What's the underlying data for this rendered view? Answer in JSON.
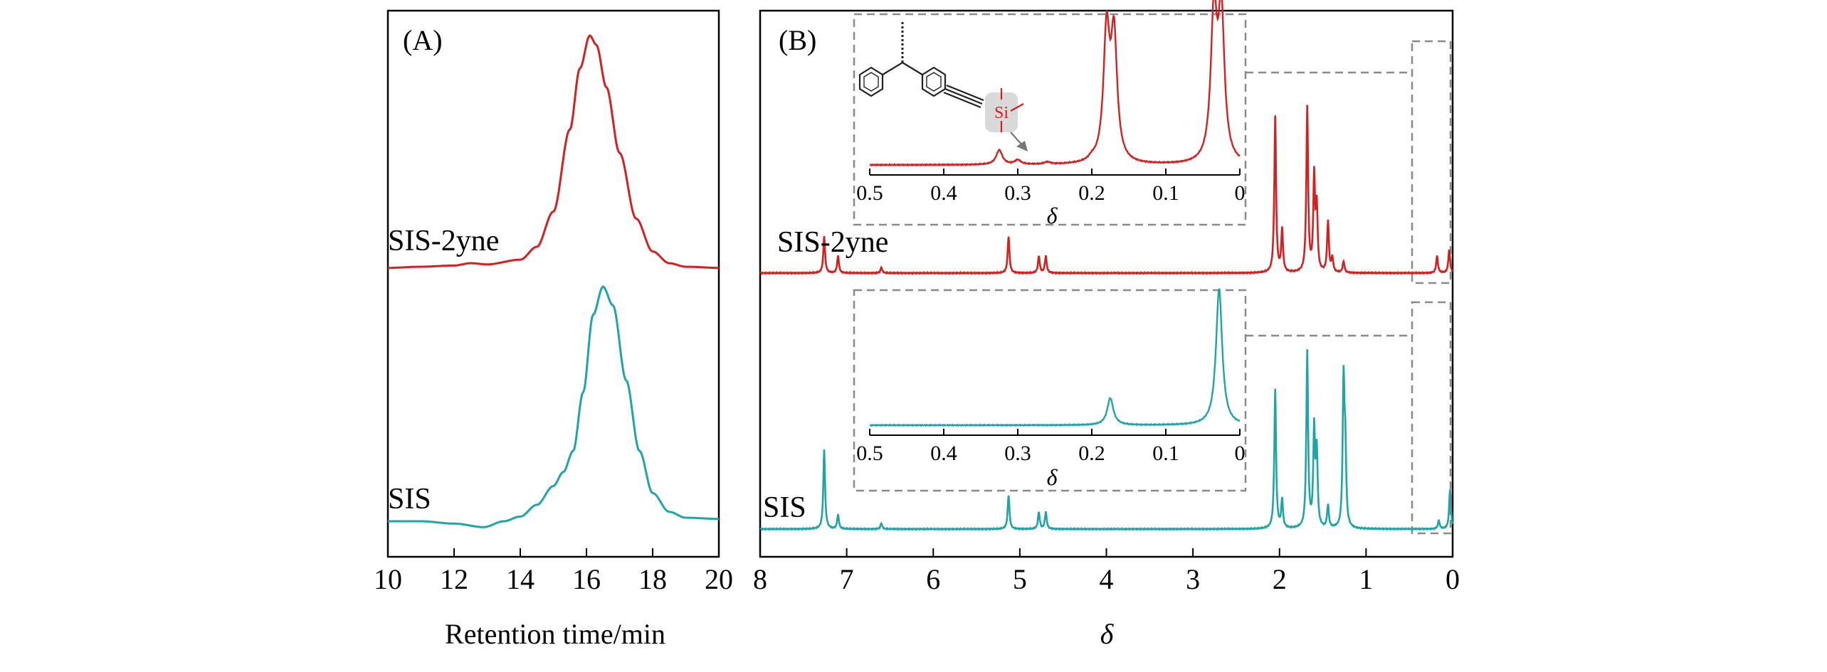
{
  "colors": {
    "sis_2yne": "#d42020",
    "sis": "#1fa5a5",
    "axis": "#000000",
    "dashed": "#8a8a8a",
    "si_highlight": "#d9d9d9"
  },
  "chart_data": [
    {
      "type": "line",
      "panel": "(A)",
      "xlabel": "Retention time/min",
      "ylabel": "",
      "xlim": [
        10,
        20
      ],
      "xticks": [
        "10",
        "12",
        "14",
        "16",
        "18",
        "20"
      ],
      "series": [
        {
          "name": "SIS-2yne",
          "color": "#d42020",
          "x": [
            10,
            11,
            12,
            12.5,
            13,
            14,
            14.5,
            15,
            15.5,
            15.8,
            16.1,
            16.3,
            16.6,
            17,
            17.5,
            18,
            18.5,
            19,
            20
          ],
          "y": [
            0.01,
            0.015,
            0.02,
            0.03,
            0.025,
            0.045,
            0.1,
            0.25,
            0.6,
            0.86,
            1.0,
            0.96,
            0.78,
            0.5,
            0.22,
            0.08,
            0.03,
            0.015,
            0.01
          ]
        },
        {
          "name": "SIS",
          "color": "#1fa5a5",
          "x": [
            10,
            11,
            12,
            12.9,
            13.5,
            14,
            14.5,
            15,
            15.3,
            15.6,
            15.9,
            16.2,
            16.5,
            16.8,
            17.2,
            17.6,
            18,
            18.5,
            19,
            20
          ],
          "y": [
            0.0,
            0.0,
            -0.01,
            -0.025,
            0.0,
            0.02,
            0.07,
            0.15,
            0.21,
            0.3,
            0.55,
            0.88,
            1.0,
            0.92,
            0.6,
            0.3,
            0.12,
            0.04,
            0.015,
            0.01
          ]
        }
      ]
    },
    {
      "type": "line",
      "panel": "(B)",
      "xlabel": "δ",
      "ylabel": "",
      "xlim": [
        8,
        0
      ],
      "xticks": [
        "8",
        "7",
        "6",
        "5",
        "4",
        "3",
        "2",
        "1",
        "0"
      ],
      "series": [
        {
          "name": "SIS-2yne",
          "color": "#d42020",
          "peaks": [
            [
              7.26,
              0.13
            ],
            [
              7.1,
              0.06
            ],
            [
              6.6,
              0.02
            ],
            [
              5.13,
              0.13
            ],
            [
              4.78,
              0.06
            ],
            [
              4.7,
              0.06
            ],
            [
              2.05,
              0.55
            ],
            [
              1.97,
              0.15
            ],
            [
              1.68,
              0.58
            ],
            [
              1.6,
              0.33
            ],
            [
              1.57,
              0.22
            ],
            [
              1.44,
              0.18
            ],
            [
              1.39,
              0.05
            ],
            [
              1.26,
              0.04
            ],
            [
              0.18,
              0.06
            ],
            [
              0.04,
              0.08
            ]
          ]
        },
        {
          "name": "SIS",
          "color": "#1fa5a5",
          "peaks": [
            [
              7.26,
              0.28
            ],
            [
              7.1,
              0.05
            ],
            [
              6.6,
              0.02
            ],
            [
              5.13,
              0.12
            ],
            [
              4.78,
              0.06
            ],
            [
              4.7,
              0.06
            ],
            [
              2.05,
              0.49
            ],
            [
              1.97,
              0.1
            ],
            [
              1.68,
              0.62
            ],
            [
              1.6,
              0.34
            ],
            [
              1.57,
              0.26
            ],
            [
              1.44,
              0.08
            ],
            [
              1.26,
              0.51
            ],
            [
              1.24,
              0.25
            ],
            [
              0.16,
              0.03
            ],
            [
              0.03,
              0.14
            ]
          ]
        }
      ],
      "insets": [
        {
          "series": "SIS-2yne",
          "xlabel": "δ",
          "xlim": [
            0.5,
            0
          ],
          "xticks": [
            "0.5",
            "0.4",
            "0.3",
            "0.2",
            "0.1",
            "0"
          ],
          "peaks": [
            [
              0.325,
              0.1
            ],
            [
              0.3,
              0.03
            ],
            [
              0.26,
              0.015
            ],
            [
              0.2,
              0.02
            ],
            [
              0.18,
              0.88
            ],
            [
              0.17,
              0.84
            ],
            [
              0.035,
              1.0
            ],
            [
              0.025,
              1.0
            ]
          ]
        },
        {
          "series": "SIS",
          "xlabel": "δ",
          "xlim": [
            0.5,
            0
          ],
          "xticks": [
            "0.5",
            "0.4",
            "0.3",
            "0.2",
            "0.1",
            "0"
          ],
          "peaks": [
            [
              0.175,
              0.19
            ],
            [
              0.028,
              0.96
            ]
          ]
        }
      ],
      "structure_label": "Si"
    }
  ],
  "labels": {
    "panel_a": "(A)",
    "panel_b": "(B)",
    "a_sis2yne": "SIS-2yne",
    "a_sis": "SIS",
    "b_sis2yne": "SIS-2yne",
    "b_sis": "SIS",
    "a_xlabel": "Retention time/min",
    "b_xlabel": "δ",
    "inset1_xlabel": "δ",
    "inset2_xlabel": "δ",
    "si_atom": "Si"
  }
}
